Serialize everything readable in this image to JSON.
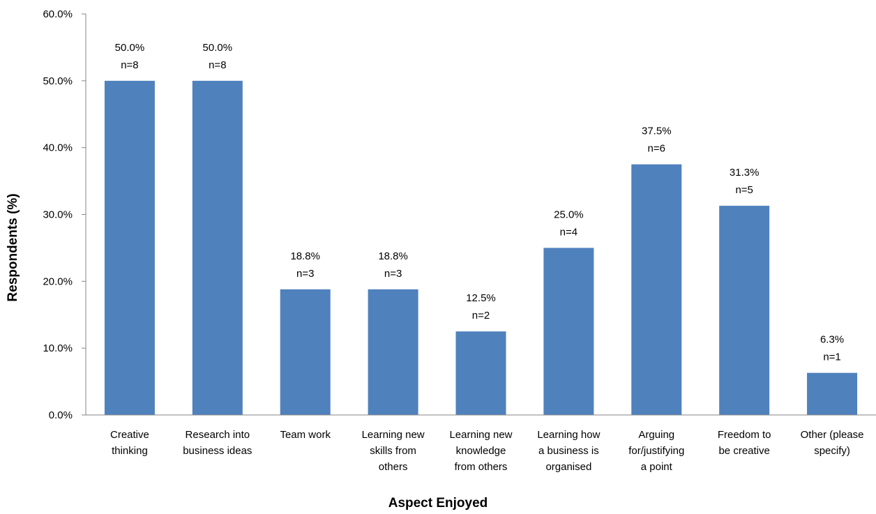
{
  "chart_data": {
    "type": "bar",
    "xlabel": "Aspect Enjoyed",
    "ylabel": "Respondents (%)",
    "ylim": [
      0,
      60
    ],
    "ytick_step": 10,
    "ytick_labels": [
      "0.0%",
      "10.0%",
      "20.0%",
      "30.0%",
      "40.0%",
      "50.0%",
      "60.0%"
    ],
    "grid": false,
    "bar_color": "#4F81BD",
    "categories": [
      [
        "Creative",
        "thinking"
      ],
      [
        "Research into",
        "business ideas"
      ],
      [
        "Team work"
      ],
      [
        "Learning new",
        "skills from",
        "others"
      ],
      [
        "Learning new",
        "knowledge",
        "from others"
      ],
      [
        "Learning how",
        "a business is",
        "organised"
      ],
      [
        "Arguing",
        "for/justifying",
        "a point"
      ],
      [
        "Freedom to",
        "be creative"
      ],
      [
        "Other (please",
        "specify)"
      ]
    ],
    "values": [
      50.0,
      50.0,
      18.8,
      18.8,
      12.5,
      25.0,
      37.5,
      31.3,
      6.3
    ],
    "data_labels": [
      [
        "50.0%",
        "n=8"
      ],
      [
        "50.0%",
        "n=8"
      ],
      [
        "18.8%",
        "n=3"
      ],
      [
        "18.8%",
        "n=3"
      ],
      [
        "12.5%",
        "n=2"
      ],
      [
        "25.0%",
        "n=4"
      ],
      [
        "37.5%",
        "n=6"
      ],
      [
        "31.3%",
        "n=5"
      ],
      [
        "6.3%",
        "n=1"
      ]
    ]
  }
}
